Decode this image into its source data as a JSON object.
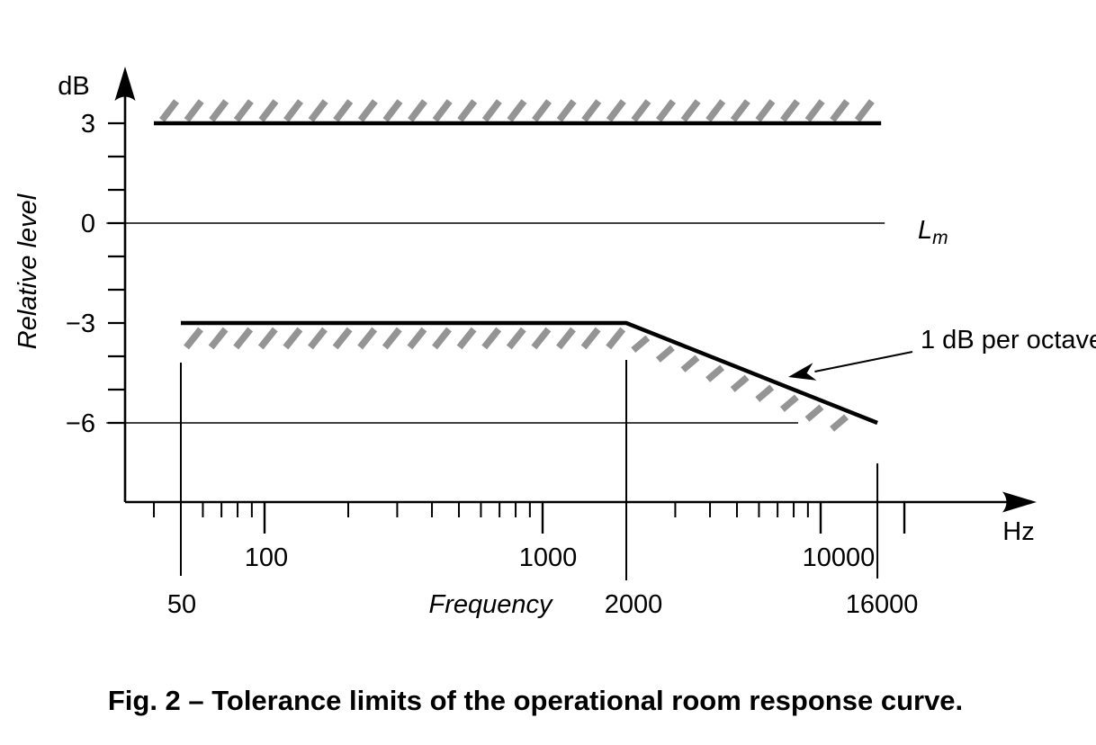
{
  "figure": {
    "caption": "Fig. 2 – Tolerance limits of the operational room response curve."
  },
  "chart_data": {
    "type": "line",
    "x_scale": "log",
    "line_color": "#000000",
    "hatch_color": "#949494",
    "x_axis": {
      "label": "Frequency",
      "unit": "Hz",
      "range_hz": [
        30,
        24000
      ],
      "major_ticks": [
        {
          "hz": 100,
          "label": "100"
        },
        {
          "hz": 1000,
          "label": "1000"
        },
        {
          "hz": 10000,
          "label": "10000"
        },
        {
          "hz": 20000,
          "label": ""
        }
      ],
      "minor_ticks_hz": [
        40,
        60,
        70,
        80,
        90,
        200,
        300,
        400,
        500,
        600,
        700,
        800,
        900,
        3000,
        4000,
        5000,
        6000,
        7000,
        8000,
        9000
      ],
      "marked_frequencies": [
        {
          "hz": 50,
          "label": "50"
        },
        {
          "hz": 2000,
          "label": "2000"
        },
        {
          "hz": 16000,
          "label": "16000"
        }
      ]
    },
    "y_axis": {
      "label": "Relative level",
      "unit": "dB",
      "range_db": [
        -8.5,
        4.5
      ],
      "labeled_ticks": [
        {
          "db": 3,
          "label": "3"
        },
        {
          "db": 0,
          "label": "0"
        },
        {
          "db": -3,
          "label": "−3"
        },
        {
          "db": -6,
          "label": "−6"
        }
      ],
      "minor_ticks_db": [
        2,
        1,
        -1,
        -2,
        -4,
        -5
      ]
    },
    "series": [
      {
        "name": "upper tolerance limit",
        "style": "thick-hatched-above",
        "points_hz_db": [
          [
            40,
            3
          ],
          [
            16500,
            3
          ]
        ]
      },
      {
        "name": "reference level",
        "style": "thin",
        "points_hz_db": [
          [
            27,
            0
          ],
          [
            17000,
            0
          ]
        ]
      },
      {
        "name": "lower tolerance limit",
        "style": "thick-hatched-below",
        "points_hz_db": [
          [
            50,
            -3
          ],
          [
            2000,
            -3
          ],
          [
            16000,
            -6
          ]
        ]
      },
      {
        "name": "minus 6 dB guide line",
        "style": "thin",
        "points_hz_db": [
          [
            27,
            -6
          ],
          [
            8300,
            -6
          ]
        ]
      }
    ],
    "reference_label": {
      "base": "L",
      "subscript": "m"
    },
    "annotations": [
      {
        "text": "1 dB per octave",
        "points_to": "sloped segment of lower tolerance limit"
      }
    ]
  }
}
